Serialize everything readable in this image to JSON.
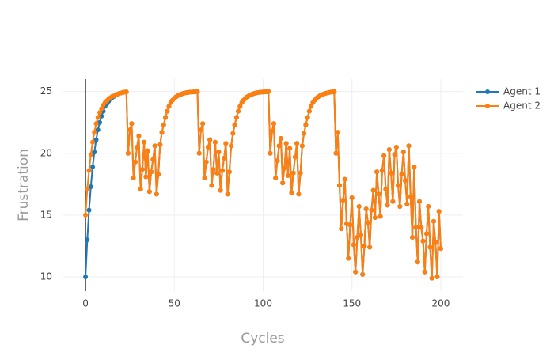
{
  "chart_data": {
    "type": "line",
    "x_label": "Cycles",
    "y_label": "Frustration",
    "xlim": [
      -12.5,
      212.5
    ],
    "xticks": [
      0,
      50,
      100,
      150,
      200
    ],
    "ylim": [
      8.85,
      26.0
    ],
    "yticks": [
      10,
      15,
      20,
      25
    ],
    "grid": true,
    "legend": "top-right",
    "x_start": 0,
    "series": [
      {
        "name": "Agent 1",
        "color": "#1f77b4",
        "values": [
          10,
          13,
          15.4,
          17.3,
          18.9,
          20.1,
          21.1,
          21.9,
          22.5,
          23.0,
          23.4,
          23.8,
          24.0,
          24.2,
          24.4,
          24.5,
          24.6,
          24.7,
          24.78,
          24.84,
          24.88,
          24.92,
          24.95,
          24.97,
          20.0,
          21.9,
          22.4,
          18.0,
          19.3,
          20.5,
          21.4,
          17.1,
          18.7,
          20.9,
          18.1,
          20.2,
          16.9,
          18.5,
          19.5,
          20.6,
          16.7,
          18.3,
          20.7,
          21.7,
          22.3,
          22.9,
          23.4,
          23.8,
          24.1,
          24.3,
          24.45,
          24.57,
          24.66,
          24.73,
          24.79,
          24.84,
          24.88,
          24.91,
          24.93,
          24.95,
          24.96,
          24.97,
          24.98,
          24.99,
          20.0,
          21.9,
          22.4,
          18.0,
          19.3,
          20.5,
          21.1,
          17.4,
          18.7,
          20.9,
          18.4,
          20.1,
          17.0,
          18.6,
          19.6,
          20.8,
          16.7,
          18.5,
          20.6,
          21.6,
          22.3,
          22.9,
          23.4,
          23.8,
          24.1,
          24.3,
          24.45,
          24.57,
          24.66,
          24.73,
          24.79,
          24.84,
          24.88,
          24.91,
          24.93,
          24.95,
          24.96,
          24.97,
          24.98,
          24.99,
          20.0,
          21.8,
          22.4,
          18.0,
          19.4,
          20.6,
          21.2,
          17.6,
          18.8,
          20.8,
          18.2,
          20.4,
          16.8,
          18.4,
          19.7,
          20.8,
          16.7,
          18.4,
          20.6,
          21.6,
          22.3,
          22.9,
          23.4,
          23.8,
          24.1,
          24.3,
          24.45,
          24.57,
          24.66,
          24.73,
          24.79,
          24.84,
          24.88,
          24.92,
          24.95,
          24.97,
          24.99,
          20.0,
          21.7,
          17.4,
          13.9,
          16.2,
          17.9,
          14.3,
          11.5,
          14.2,
          16.4,
          12.6,
          10.4,
          13.2,
          15.7,
          13.4,
          10.2,
          12.5,
          15.5,
          14.4,
          12.4,
          15.4,
          17.0,
          14.8,
          18.5,
          16.7,
          14.9,
          18.6,
          19.8,
          17.1,
          15.8,
          20.3,
          18.4,
          16.1,
          19.9,
          20.5,
          17.4,
          15.7,
          18.3,
          20.1,
          17.8,
          15.9,
          20.6,
          16.5,
          13.2,
          18.9,
          14.0,
          11.2,
          16.1,
          14.0,
          12.9,
          10.4,
          13.5,
          15.7,
          12.4,
          9.9,
          14.5,
          12.8,
          10.0,
          15.3,
          12.3
        ]
      },
      {
        "name": "Agent 2",
        "color": "#ff7f0e",
        "values": [
          15,
          17.1,
          18.6,
          19.9,
          20.9,
          21.7,
          22.4,
          22.9,
          23.3,
          23.6,
          23.9,
          24.1,
          24.25,
          24.4,
          24.5,
          24.6,
          24.65,
          24.7,
          24.78,
          24.84,
          24.88,
          24.92,
          24.95,
          24.97,
          20.0,
          21.9,
          22.4,
          18.0,
          19.3,
          20.5,
          21.4,
          17.1,
          18.7,
          20.9,
          18.1,
          20.2,
          16.9,
          18.5,
          19.5,
          20.6,
          16.7,
          18.3,
          20.7,
          21.7,
          22.3,
          22.9,
          23.4,
          23.8,
          24.1,
          24.3,
          24.45,
          24.57,
          24.66,
          24.73,
          24.79,
          24.84,
          24.88,
          24.91,
          24.93,
          24.95,
          24.96,
          24.97,
          24.98,
          24.99,
          20.0,
          21.9,
          22.4,
          18.0,
          19.3,
          20.5,
          21.1,
          17.4,
          18.7,
          20.9,
          18.4,
          20.1,
          17.0,
          18.6,
          19.6,
          20.8,
          16.7,
          18.5,
          20.6,
          21.6,
          22.3,
          22.9,
          23.4,
          23.8,
          24.1,
          24.3,
          24.45,
          24.57,
          24.66,
          24.73,
          24.79,
          24.84,
          24.88,
          24.91,
          24.93,
          24.95,
          24.96,
          24.97,
          24.98,
          24.99,
          20.0,
          21.8,
          22.4,
          18.0,
          19.4,
          20.6,
          21.2,
          17.6,
          18.8,
          20.8,
          18.2,
          20.4,
          16.8,
          18.4,
          19.7,
          20.8,
          16.7,
          18.4,
          20.6,
          21.6,
          22.3,
          22.9,
          23.4,
          23.8,
          24.1,
          24.3,
          24.45,
          24.57,
          24.66,
          24.73,
          24.79,
          24.84,
          24.88,
          24.92,
          24.95,
          24.97,
          24.99,
          20.0,
          21.7,
          17.4,
          13.9,
          16.2,
          17.9,
          14.3,
          11.5,
          14.2,
          16.4,
          12.6,
          10.4,
          13.2,
          15.7,
          13.4,
          10.2,
          12.5,
          15.5,
          14.4,
          12.4,
          15.4,
          17.0,
          14.8,
          18.5,
          16.7,
          14.9,
          18.6,
          19.8,
          17.1,
          15.8,
          20.3,
          18.4,
          16.1,
          19.9,
          20.5,
          17.4,
          15.7,
          18.3,
          20.1,
          17.8,
          15.9,
          20.6,
          16.5,
          13.2,
          18.9,
          14.0,
          11.2,
          16.1,
          14.0,
          12.9,
          10.4,
          13.5,
          15.7,
          12.4,
          9.9,
          14.5,
          12.8,
          10.0,
          15.3,
          12.3
        ]
      }
    ]
  }
}
